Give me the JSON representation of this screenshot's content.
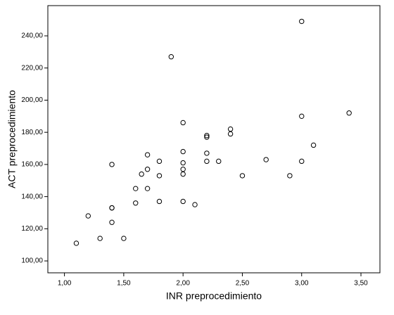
{
  "chart_data": {
    "type": "scatter",
    "xlabel": "INR preprocedimiento",
    "ylabel": "ACT preprocedimiento",
    "x": [
      1.1,
      1.2,
      1.3,
      1.4,
      1.4,
      1.4,
      1.4,
      1.5,
      1.6,
      1.6,
      1.65,
      1.7,
      1.7,
      1.7,
      1.8,
      1.8,
      1.8,
      1.9,
      2.0,
      2.0,
      2.0,
      2.0,
      2.0,
      2.0,
      2.1,
      2.2,
      2.2,
      2.2,
      2.2,
      2.3,
      2.4,
      2.4,
      2.5,
      2.7,
      2.9,
      3.0,
      3.0,
      3.0,
      3.1,
      3.4
    ],
    "values": [
      111,
      128,
      114,
      133,
      133,
      124,
      160,
      114,
      136,
      145,
      154,
      145,
      157,
      166,
      137,
      153,
      162,
      227,
      186,
      168,
      161,
      157,
      154,
      137,
      135,
      178,
      177,
      167,
      162,
      162,
      182,
      179,
      153,
      163,
      153,
      249,
      190,
      162,
      172,
      192
    ],
    "color": "#000000",
    "xlim": [
      0.86,
      3.66
    ],
    "ylim": [
      92.6,
      258.8
    ],
    "xticks": [
      {
        "value": 1,
        "label": "1,00"
      },
      {
        "value": 1.5,
        "label": "1,50"
      },
      {
        "value": 2,
        "label": "2,00"
      },
      {
        "value": 2.5,
        "label": "2,50"
      },
      {
        "value": 3,
        "label": "3,00"
      },
      {
        "value": 3.5,
        "label": "3,50"
      }
    ],
    "yticks": [
      {
        "value": 100,
        "label": "100,00"
      },
      {
        "value": 120,
        "label": "120,00"
      },
      {
        "value": 140,
        "label": "140,00"
      },
      {
        "value": 160,
        "label": "160,00"
      },
      {
        "value": 180,
        "label": "180,00"
      },
      {
        "value": 200,
        "label": "200,00"
      },
      {
        "value": 220,
        "label": "220,00"
      },
      {
        "value": 240,
        "label": "240,00"
      }
    ]
  }
}
